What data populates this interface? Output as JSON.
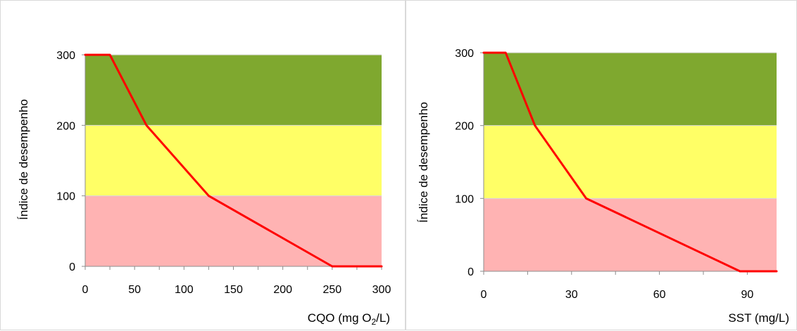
{
  "chart_data": [
    {
      "type": "line",
      "title": "",
      "xlabel": "CQO (mg O2/L)",
      "xlabel_parts": {
        "main": "CQO (mg O",
        "sub": "2",
        "end": "/L)"
      },
      "ylabel": "Índice de desempenho",
      "xlim": [
        0,
        300
      ],
      "ylim": [
        0,
        300
      ],
      "x_ticks": [
        0,
        50,
        100,
        150,
        200,
        250,
        300
      ],
      "x_tick_labels": [
        "0",
        "50",
        "100",
        "150",
        "200",
        "250",
        "300"
      ],
      "y_ticks": [
        0,
        100,
        200,
        300
      ],
      "y_tick_labels": [
        "0",
        "100",
        "200",
        "300"
      ],
      "bands": [
        {
          "from": 0,
          "to": 100,
          "color": "#ffb3b3"
        },
        {
          "from": 100,
          "to": 200,
          "color": "#ffff66"
        },
        {
          "from": 200,
          "to": 300,
          "color": "#7fa82f"
        }
      ],
      "series": [
        {
          "color": "#ff0000",
          "x": [
            0,
            25,
            62,
            125,
            250,
            300
          ],
          "y": [
            300,
            300,
            200,
            100,
            0,
            0
          ]
        }
      ],
      "grid": false,
      "legend": "none"
    },
    {
      "type": "line",
      "title": "",
      "xlabel": "SST (mg/L)",
      "ylabel": "Índice de desempenho",
      "xlim": [
        0,
        100
      ],
      "ylim": [
        0,
        300
      ],
      "x_ticks": [
        0,
        30,
        60,
        90
      ],
      "x_tick_labels": [
        "0",
        "30",
        "60",
        "90"
      ],
      "y_ticks": [
        0,
        100,
        200,
        300
      ],
      "y_tick_labels": [
        "0",
        "100",
        "200",
        "300"
      ],
      "bands": [
        {
          "from": 0,
          "to": 100,
          "color": "#ffb3b3"
        },
        {
          "from": 100,
          "to": 200,
          "color": "#ffff66"
        },
        {
          "from": 200,
          "to": 300,
          "color": "#7fa82f"
        }
      ],
      "series": [
        {
          "color": "#ff0000",
          "x": [
            0,
            7.5,
            17.5,
            35,
            87.5,
            100
          ],
          "y": [
            300,
            300,
            200,
            100,
            0,
            0
          ]
        }
      ],
      "grid": false,
      "legend": "none"
    }
  ]
}
